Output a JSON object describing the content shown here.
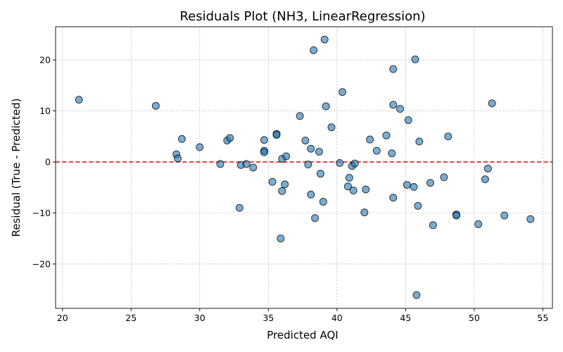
{
  "chart_data": {
    "type": "scatter",
    "title": "Residuals Plot (NH3, LinearRegression)",
    "xlabel": "Predicted AQI",
    "ylabel": "Residual (True - Predicted)",
    "xlim": [
      19.5,
      55.7
    ],
    "ylim": [
      -28.7,
      26.5
    ],
    "xticks": [
      20,
      25,
      30,
      35,
      40,
      45,
      50,
      55
    ],
    "yticks": [
      -20,
      -10,
      0,
      10,
      20
    ],
    "grid": true,
    "zero_line": {
      "y": 0,
      "color": "#e41a1c",
      "style": "dashed"
    },
    "point_color": "#1f77b4",
    "points": [
      {
        "x": 21.2,
        "y": 12.2
      },
      {
        "x": 26.8,
        "y": 11.0
      },
      {
        "x": 28.7,
        "y": 4.5
      },
      {
        "x": 28.3,
        "y": 1.5
      },
      {
        "x": 28.4,
        "y": 0.7
      },
      {
        "x": 30.0,
        "y": 2.9
      },
      {
        "x": 31.5,
        "y": -0.4
      },
      {
        "x": 32.0,
        "y": 4.2
      },
      {
        "x": 32.2,
        "y": 4.7
      },
      {
        "x": 32.9,
        "y": -9.0
      },
      {
        "x": 33.0,
        "y": -0.6
      },
      {
        "x": 33.4,
        "y": -0.4
      },
      {
        "x": 33.9,
        "y": -1.1
      },
      {
        "x": 34.7,
        "y": 4.3
      },
      {
        "x": 34.7,
        "y": 2.2
      },
      {
        "x": 34.7,
        "y": 1.9
      },
      {
        "x": 35.3,
        "y": -3.9
      },
      {
        "x": 35.6,
        "y": 5.5
      },
      {
        "x": 35.6,
        "y": 5.3
      },
      {
        "x": 35.9,
        "y": -15.0
      },
      {
        "x": 36.0,
        "y": 0.6
      },
      {
        "x": 36.0,
        "y": -5.7
      },
      {
        "x": 36.2,
        "y": -4.4
      },
      {
        "x": 36.3,
        "y": 1.1
      },
      {
        "x": 37.3,
        "y": 9.0
      },
      {
        "x": 37.7,
        "y": 4.2
      },
      {
        "x": 37.9,
        "y": -0.5
      },
      {
        "x": 38.1,
        "y": 2.6
      },
      {
        "x": 38.1,
        "y": -6.4
      },
      {
        "x": 38.3,
        "y": 21.9
      },
      {
        "x": 38.4,
        "y": -11.0
      },
      {
        "x": 38.7,
        "y": 2.0
      },
      {
        "x": 38.8,
        "y": -2.3
      },
      {
        "x": 39.0,
        "y": -7.8
      },
      {
        "x": 39.1,
        "y": 24.0
      },
      {
        "x": 39.2,
        "y": 10.9
      },
      {
        "x": 39.6,
        "y": 6.8
      },
      {
        "x": 40.2,
        "y": -0.2
      },
      {
        "x": 40.4,
        "y": 13.7
      },
      {
        "x": 40.8,
        "y": -4.8
      },
      {
        "x": 40.9,
        "y": -3.1
      },
      {
        "x": 41.1,
        "y": -0.8
      },
      {
        "x": 41.2,
        "y": -5.6
      },
      {
        "x": 41.3,
        "y": -0.3
      },
      {
        "x": 42.0,
        "y": -9.9
      },
      {
        "x": 42.1,
        "y": -5.4
      },
      {
        "x": 42.4,
        "y": 4.4
      },
      {
        "x": 42.9,
        "y": 2.2
      },
      {
        "x": 43.6,
        "y": 5.2
      },
      {
        "x": 44.0,
        "y": 1.7
      },
      {
        "x": 44.1,
        "y": 18.2
      },
      {
        "x": 44.1,
        "y": 11.2
      },
      {
        "x": 44.1,
        "y": -7.0
      },
      {
        "x": 44.6,
        "y": 10.4
      },
      {
        "x": 45.1,
        "y": -4.5
      },
      {
        "x": 45.2,
        "y": 8.2
      },
      {
        "x": 45.6,
        "y": -4.9
      },
      {
        "x": 45.7,
        "y": 20.1
      },
      {
        "x": 45.8,
        "y": -26.1
      },
      {
        "x": 45.9,
        "y": -8.6
      },
      {
        "x": 46.0,
        "y": 4.0
      },
      {
        "x": 46.8,
        "y": -4.1
      },
      {
        "x": 47.0,
        "y": -12.4
      },
      {
        "x": 47.8,
        "y": -3.0
      },
      {
        "x": 48.1,
        "y": 5.0
      },
      {
        "x": 48.7,
        "y": -10.3
      },
      {
        "x": 48.7,
        "y": -10.5
      },
      {
        "x": 50.3,
        "y": -12.2
      },
      {
        "x": 50.8,
        "y": -3.4
      },
      {
        "x": 51.0,
        "y": -1.3
      },
      {
        "x": 51.3,
        "y": 11.5
      },
      {
        "x": 52.2,
        "y": -10.5
      },
      {
        "x": 54.1,
        "y": -11.2
      }
    ]
  }
}
